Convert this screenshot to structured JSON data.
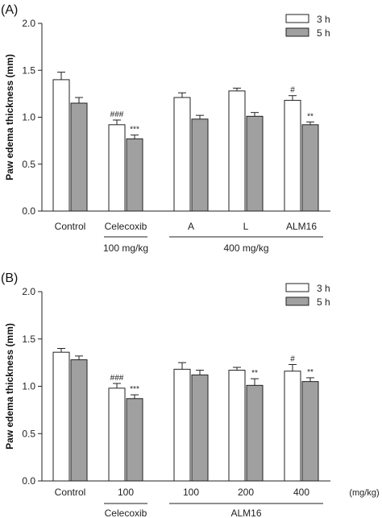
{
  "chart_data": [
    {
      "type": "bar",
      "panel_label": "(A)",
      "ylabel": "Paw edema thickness  (mm)",
      "ylim": [
        0,
        2.0
      ],
      "yticks": [
        "0.0",
        "0.5",
        "1.0",
        "1.5",
        "2.0"
      ],
      "categories": [
        "Control",
        "Celecoxib",
        "A",
        "L",
        "ALM16"
      ],
      "series": [
        {
          "name": "3 h",
          "color": "#ffffff",
          "values": [
            1.4,
            0.92,
            1.21,
            1.28,
            1.18
          ],
          "errors": [
            0.08,
            0.05,
            0.05,
            0.03,
            0.05
          ]
        },
        {
          "name": "5 h",
          "color": "#a0a0a0",
          "values": [
            1.15,
            0.77,
            0.98,
            1.01,
            0.92
          ],
          "errors": [
            0.06,
            0.04,
            0.04,
            0.04,
            0.03
          ]
        }
      ],
      "annotations": [
        {
          "category": 1,
          "series": 0,
          "text": "###"
        },
        {
          "category": 1,
          "series": 1,
          "text": "***"
        },
        {
          "category": 4,
          "series": 0,
          "text": "#"
        },
        {
          "category": 4,
          "series": 1,
          "text": "**"
        }
      ],
      "groups": [
        {
          "label": "100 mg/kg",
          "from": 1,
          "to": 1
        },
        {
          "label": "400 mg/kg",
          "from": 2,
          "to": 4
        }
      ],
      "legend_position": "top-right",
      "x_unit": ""
    },
    {
      "type": "bar",
      "panel_label": "(B)",
      "ylabel": "Paw edema thickness  (mm)",
      "ylim": [
        0,
        2.0
      ],
      "yticks": [
        "0.0",
        "0.5",
        "1.0",
        "1.5",
        "2.0"
      ],
      "categories": [
        "Control",
        "100",
        "100",
        "200",
        "400"
      ],
      "series": [
        {
          "name": "3 h",
          "color": "#ffffff",
          "values": [
            1.36,
            0.98,
            1.18,
            1.17,
            1.16
          ],
          "errors": [
            0.04,
            0.05,
            0.07,
            0.03,
            0.07
          ]
        },
        {
          "name": "5 h",
          "color": "#a0a0a0",
          "values": [
            1.28,
            0.87,
            1.12,
            1.01,
            1.05
          ],
          "errors": [
            0.04,
            0.04,
            0.05,
            0.07,
            0.04
          ]
        }
      ],
      "annotations": [
        {
          "category": 1,
          "series": 0,
          "text": "###"
        },
        {
          "category": 1,
          "series": 1,
          "text": "***"
        },
        {
          "category": 3,
          "series": 1,
          "text": "**"
        },
        {
          "category": 4,
          "series": 0,
          "text": "#"
        },
        {
          "category": 4,
          "series": 1,
          "text": "**"
        }
      ],
      "groups": [
        {
          "label": "Celecoxib",
          "from": 1,
          "to": 1
        },
        {
          "label": "ALM16",
          "from": 2,
          "to": 4
        }
      ],
      "legend_position": "top-right",
      "x_unit": "(mg/kg)"
    }
  ]
}
